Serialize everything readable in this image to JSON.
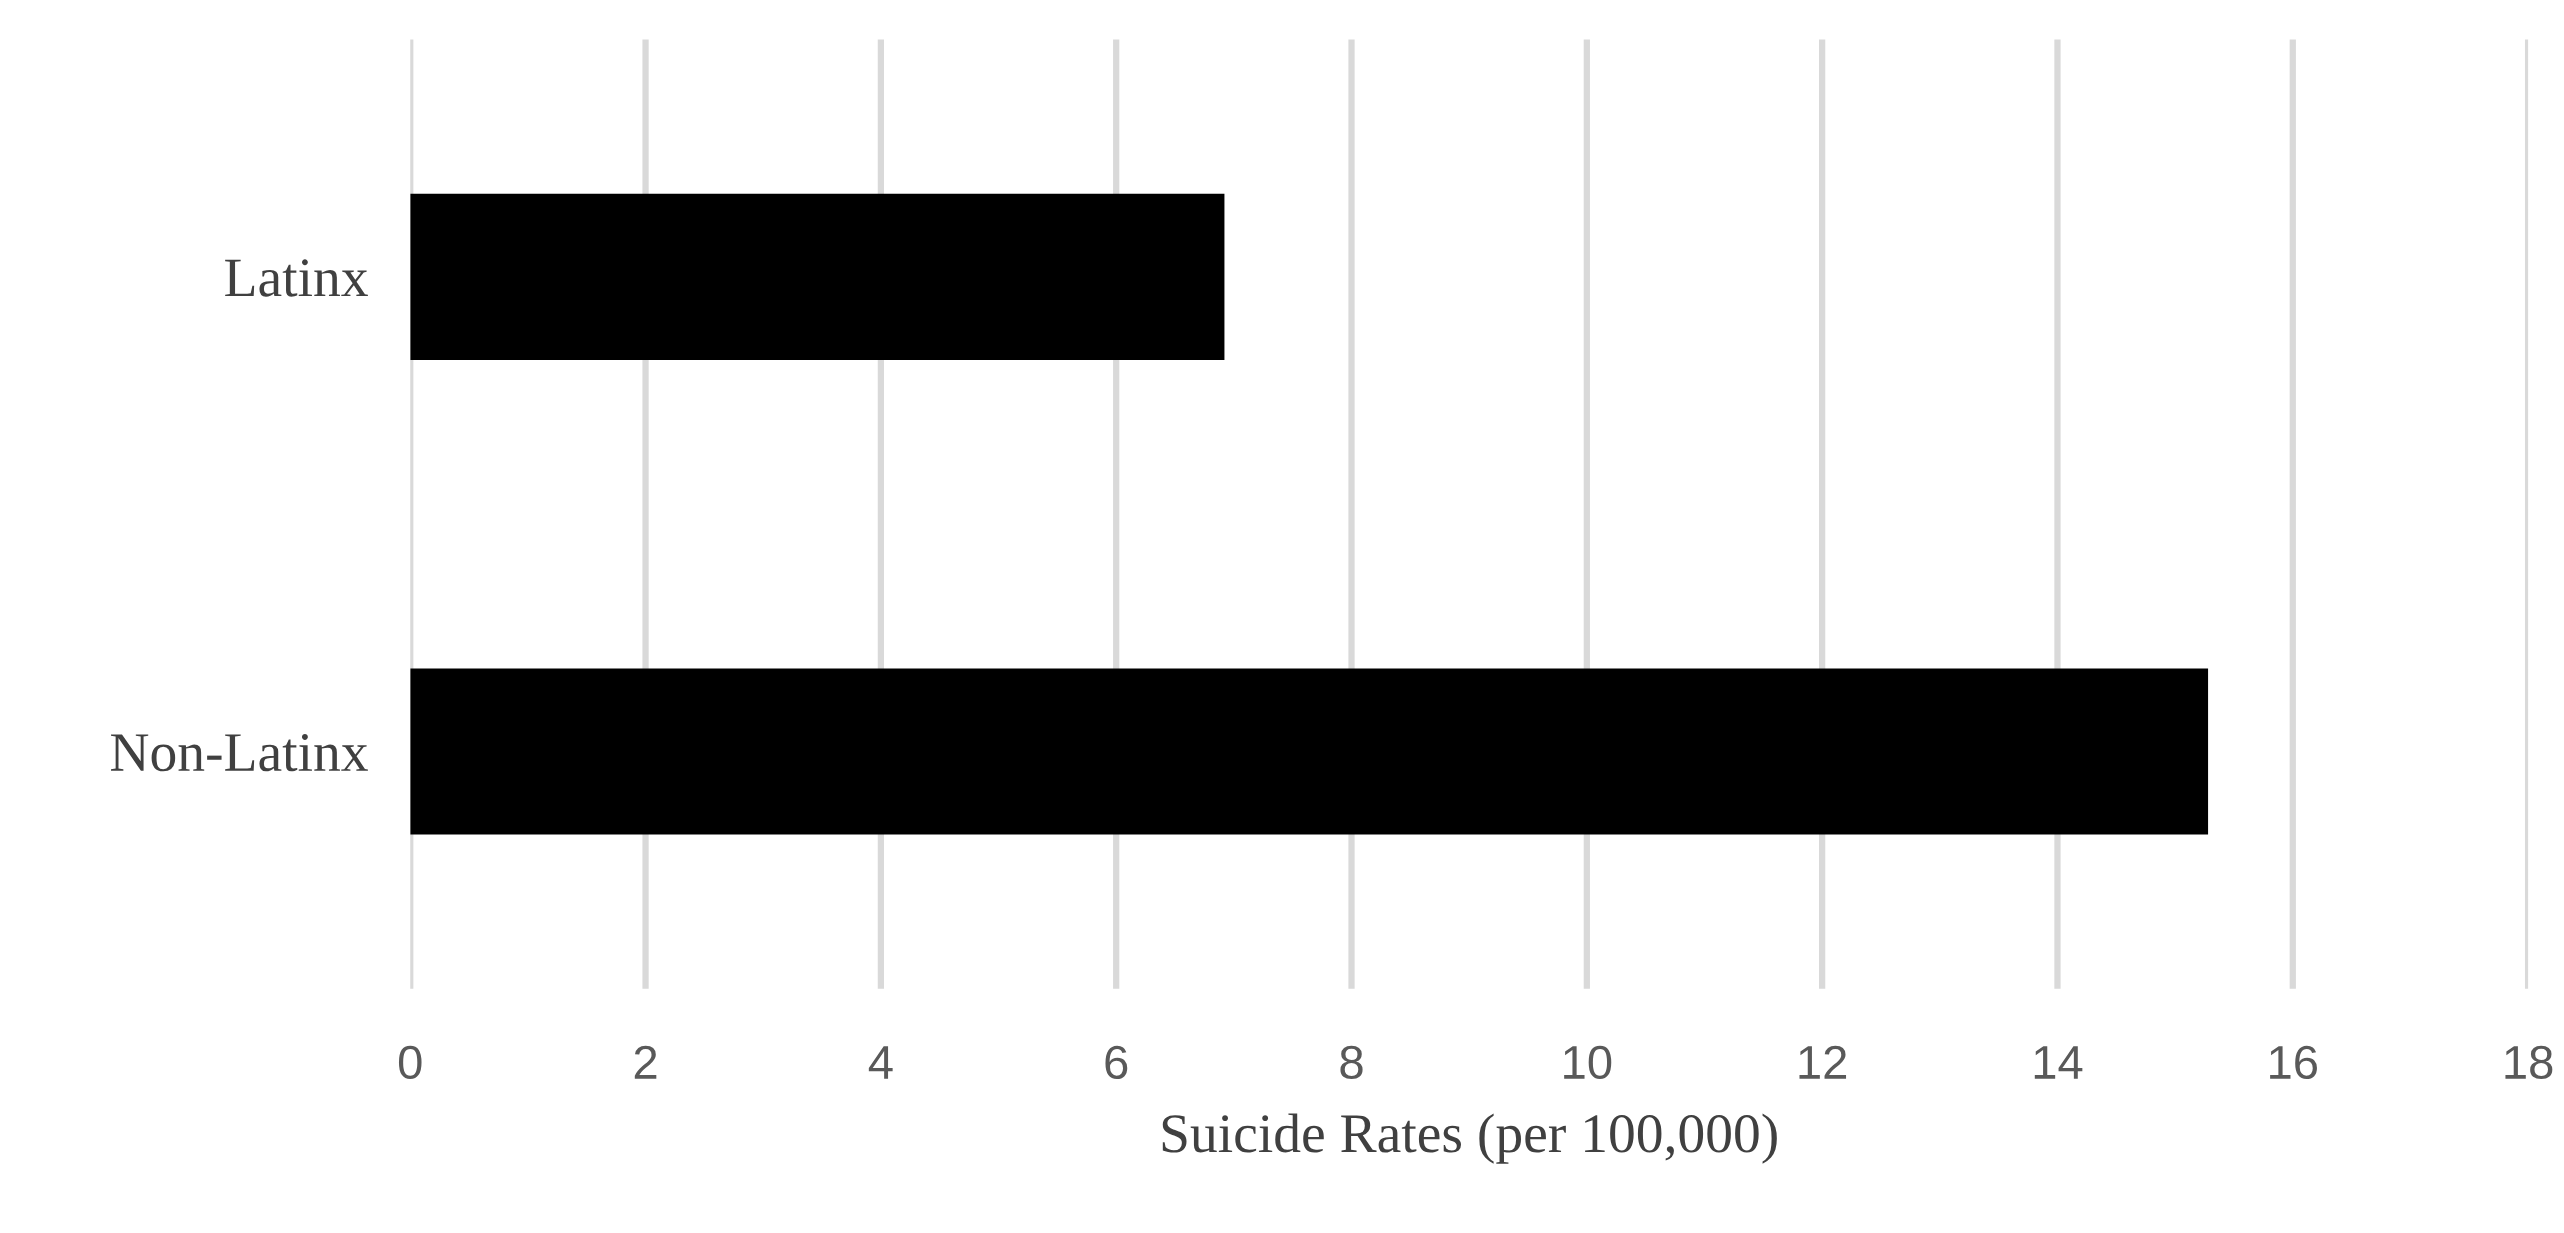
{
  "chart_data": {
    "type": "bar",
    "orientation": "horizontal",
    "categories": [
      "Latinx",
      "Non-Latinx"
    ],
    "values": [
      6.92,
      15.28
    ],
    "color": "#000000",
    "xlabel": "Suicide Rates (per 100,000)",
    "xlim": [
      0,
      18
    ],
    "xticks": [
      0,
      2,
      4,
      6,
      8,
      10,
      12,
      14,
      16,
      18
    ],
    "grid": "x"
  }
}
